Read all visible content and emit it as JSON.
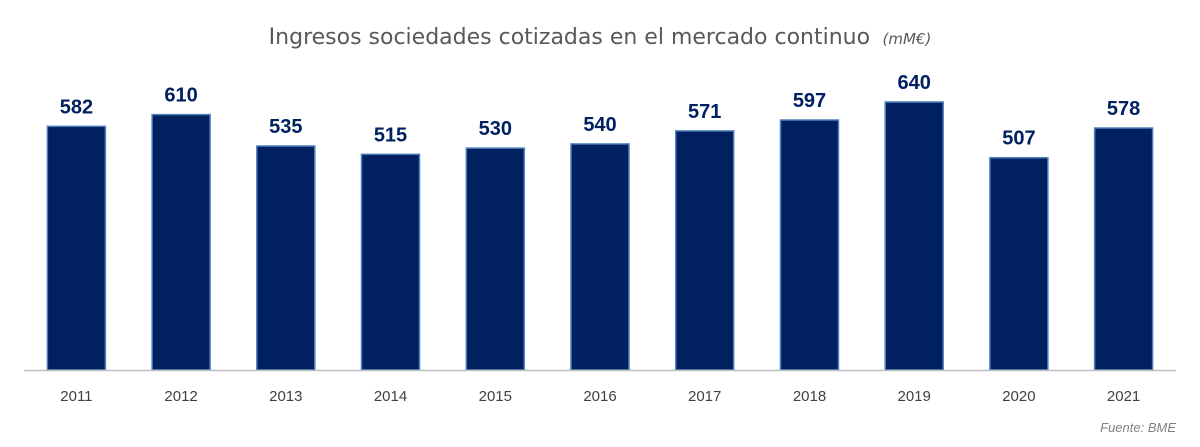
{
  "chart_data": {
    "type": "bar",
    "title": "Ingresos sociedades cotizadas en el mercado continuo",
    "title_unit": "(mM€)",
    "categories": [
      "2011",
      "2012",
      "2013",
      "2014",
      "2015",
      "2016",
      "2017",
      "2018",
      "2019",
      "2020",
      "2021"
    ],
    "values": [
      582,
      610,
      535,
      515,
      530,
      540,
      571,
      597,
      640,
      507,
      578
    ],
    "ylim": [
      0,
      640
    ],
    "xlabel": "",
    "ylabel": "",
    "grid": false,
    "data_labels": true
  },
  "source": "Fuente: BME",
  "colors": {
    "bar_fill": "#002060",
    "bar_stroke": "#4f81bd",
    "label_color": "#002060",
    "title_color": "#595959",
    "axis_color": "#bfbfbf"
  }
}
